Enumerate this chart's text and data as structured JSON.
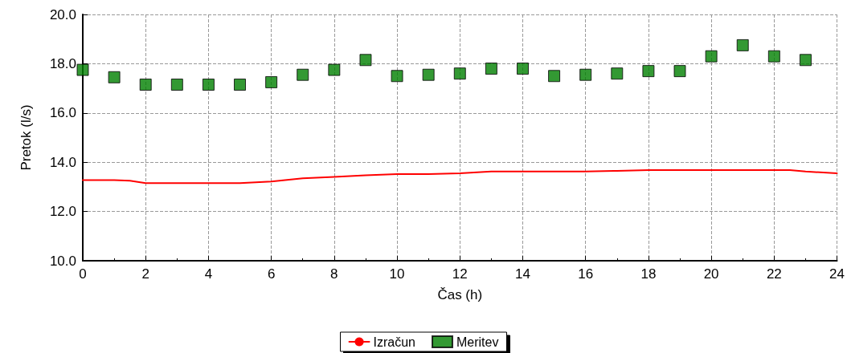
{
  "chart_data": {
    "type": "line",
    "xlabel": "Čas (h)",
    "ylabel": "Pretok (l/s)",
    "xlim": [
      0,
      24
    ],
    "xticks": [
      0,
      2,
      4,
      6,
      8,
      10,
      12,
      14,
      16,
      18,
      20,
      22,
      24
    ],
    "ylim": [
      10,
      20
    ],
    "yticks": [
      {
        "value": 10,
        "label": "10.0"
      },
      {
        "value": 12,
        "label": "12.0"
      },
      {
        "value": 14,
        "label": "14.0"
      },
      {
        "value": 16,
        "label": "16.0"
      },
      {
        "value": 18,
        "label": "18.0"
      },
      {
        "value": 20,
        "label": "20.0"
      }
    ],
    "grid": true,
    "legend": "bottom",
    "series": [
      {
        "name": "Izračun",
        "color": "#ff0000",
        "marker": "none",
        "line_style": "solid",
        "x": [
          0,
          1,
          1.5,
          2,
          3,
          4,
          5,
          6,
          7,
          8,
          9,
          10,
          11,
          12,
          13,
          14,
          15,
          16,
          17,
          18,
          19,
          20,
          21,
          22,
          22.5,
          23,
          24
        ],
        "values": [
          13.27,
          13.27,
          13.25,
          13.15,
          13.15,
          13.15,
          13.15,
          13.22,
          13.35,
          13.4,
          13.47,
          13.52,
          13.52,
          13.55,
          13.62,
          13.62,
          13.62,
          13.62,
          13.65,
          13.68,
          13.68,
          13.68,
          13.68,
          13.68,
          13.68,
          13.62,
          13.55
        ]
      },
      {
        "name": "Meritev",
        "type": "scatter",
        "color": "#008000",
        "marker": "square",
        "x": [
          0,
          1,
          2,
          3,
          4,
          5,
          6,
          7,
          8,
          9,
          10,
          11,
          12,
          13,
          14,
          15,
          16,
          17,
          18,
          19,
          20,
          21,
          22,
          23
        ],
        "values": [
          17.75,
          17.45,
          17.15,
          17.15,
          17.15,
          17.15,
          17.25,
          17.55,
          17.75,
          18.15,
          17.5,
          17.55,
          17.6,
          17.8,
          17.8,
          17.5,
          17.55,
          17.6,
          17.7,
          17.7,
          18.3,
          18.75,
          18.3,
          18.15
        ]
      }
    ]
  }
}
